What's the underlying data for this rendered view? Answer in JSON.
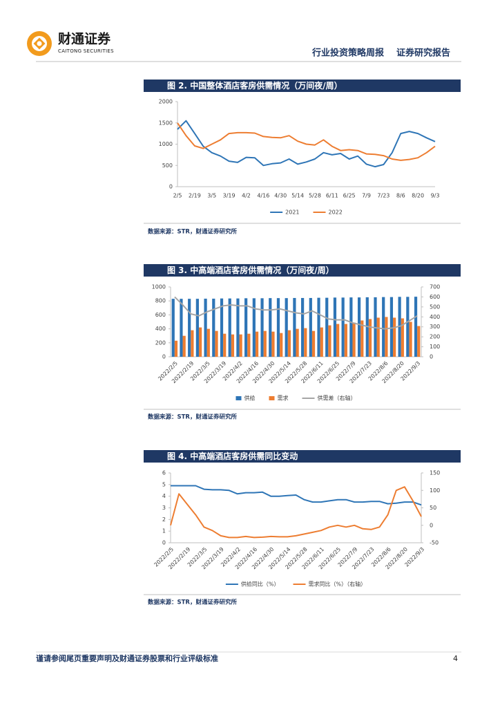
{
  "header": {
    "company": "财通证券",
    "company_en": "CAITONG SECURITIES",
    "report_type": "行业投资策略周报",
    "report_kind": "证券研究报告"
  },
  "chart_data": [
    {
      "type": "line",
      "title": "图 2. 中国整体酒店客房供需情况（万间夜/周）",
      "source": "数据来源：STR，财通证券研究所",
      "categories": [
        "2/5",
        null,
        "2/19",
        null,
        "3/5",
        null,
        "3/19",
        null,
        "4/2",
        null,
        "4/16",
        null,
        "4/30",
        null,
        "5/14",
        null,
        "5/28",
        null,
        "6/11",
        null,
        "6/25",
        null,
        "7/9",
        null,
        "7/23",
        null,
        "8/6",
        null,
        "8/20",
        null,
        "9/3"
      ],
      "series": [
        {
          "name": "2021",
          "color": "#2e75b6",
          "values": [
            1350,
            1550,
            1250,
            950,
            800,
            720,
            600,
            570,
            690,
            680,
            500,
            540,
            560,
            650,
            530,
            580,
            650,
            800,
            750,
            780,
            650,
            720,
            530,
            470,
            520,
            800,
            1250,
            1300,
            1250,
            1150,
            1060
          ]
        },
        {
          "name": "2022",
          "color": "#ed7d31",
          "values": [
            1500,
            1200,
            960,
            900,
            1000,
            1100,
            1250,
            1270,
            1270,
            1260,
            1180,
            1160,
            1150,
            1200,
            1070,
            1000,
            980,
            1100,
            950,
            850,
            870,
            850,
            770,
            760,
            730,
            650,
            620,
            640,
            680,
            800,
            950
          ]
        }
      ],
      "ylim": [
        0,
        2000
      ],
      "yticks": [
        0,
        500,
        1000,
        1500,
        2000
      ],
      "grid": false
    },
    {
      "type": "bar",
      "title": "图 3. 中高端酒店客房供需情况（万间夜/周）",
      "source": "数据来源：STR，财通证券研究所",
      "categories": [
        "2022/2/5",
        null,
        "2022/2/19",
        null,
        "2022/3/5",
        null,
        "2022/3/19",
        null,
        "2022/4/2",
        null,
        "2022/4/16",
        null,
        "2022/4/30",
        null,
        "2022/5/14",
        null,
        "2022/5/28",
        null,
        "2022/6/11",
        null,
        "2022/6/25",
        null,
        "2022/7/9",
        null,
        "2022/7/23",
        null,
        "2022/8/6",
        null,
        "2022/8/20",
        null,
        "2022/9/3"
      ],
      "series": [
        {
          "name": "供给",
          "color": "#2e75b6",
          "type": "bar",
          "values": [
            830,
            830,
            830,
            830,
            832,
            832,
            835,
            835,
            835,
            838,
            838,
            838,
            840,
            840,
            840,
            842,
            842,
            842,
            845,
            845,
            848,
            848,
            850,
            850,
            852,
            852,
            855,
            855,
            858,
            858,
            860
          ]
        },
        {
          "name": "需求",
          "color": "#ed7d31",
          "type": "bar",
          "values": [
            230,
            300,
            380,
            420,
            400,
            370,
            330,
            320,
            320,
            330,
            360,
            370,
            360,
            340,
            380,
            400,
            410,
            370,
            420,
            450,
            470,
            470,
            490,
            520,
            540,
            560,
            570,
            560,
            550,
            500,
            440
          ]
        },
        {
          "name": "供需差（右轴）",
          "color": "#a5a5a5",
          "type": "line",
          "axis": "y2",
          "values": [
            600,
            520,
            430,
            410,
            450,
            480,
            510,
            520,
            510,
            510,
            480,
            470,
            470,
            480,
            460,
            440,
            430,
            460,
            420,
            380,
            370,
            370,
            340,
            320,
            300,
            290,
            280,
            290,
            310,
            360,
            410
          ]
        }
      ],
      "ylim": [
        0,
        1000
      ],
      "yticks": [
        0,
        200,
        400,
        600,
        800,
        1000
      ],
      "y2lim": [
        0,
        700
      ],
      "y2ticks": [
        0,
        100,
        200,
        300,
        400,
        500,
        600,
        700
      ],
      "grid": false
    },
    {
      "type": "line",
      "title": "图 4. 中高端酒店客房供需同比变动",
      "source": "数据来源：STR，财通证券研究所",
      "categories": [
        "2022/2/5",
        null,
        "2022/2/19",
        null,
        "2022/3/5",
        null,
        "2022/3/19",
        null,
        "2022/4/2",
        null,
        "2022/4/16",
        null,
        "2022/4/30",
        null,
        "2022/5/14",
        null,
        "2022/5/28",
        null,
        "2022/6/11",
        null,
        "2022/6/25",
        null,
        "2022/7/9",
        null,
        "2022/7/23",
        null,
        "2022/8/6",
        null,
        "2022/8/20",
        null,
        "2022/9/3"
      ],
      "series": [
        {
          "name": "供给同比（%）",
          "color": "#2e75b6",
          "values": [
            4.9,
            4.9,
            4.9,
            4.9,
            4.6,
            4.55,
            4.55,
            4.5,
            4.2,
            4.3,
            4.3,
            4.35,
            4.0,
            4.0,
            4.05,
            4.1,
            3.7,
            3.5,
            3.5,
            3.6,
            3.7,
            3.7,
            3.5,
            3.5,
            3.55,
            3.55,
            3.35,
            3.4,
            3.5,
            3.5,
            3.25
          ]
        },
        {
          "name": "需求同比（%）（右轴）",
          "color": "#ed7d31",
          "axis": "y2",
          "values": [
            0,
            90,
            60,
            30,
            -5,
            -15,
            -30,
            -35,
            -35,
            -32,
            -35,
            -34,
            -32,
            -33,
            -33,
            -30,
            -25,
            -20,
            -15,
            -5,
            0,
            -5,
            0,
            -10,
            -12,
            -5,
            30,
            100,
            110,
            70,
            25
          ]
        }
      ],
      "ylim": [
        0,
        6
      ],
      "yticks": [
        0,
        1,
        2,
        3,
        4,
        5,
        6
      ],
      "y2lim": [
        -50,
        150
      ],
      "y2ticks": [
        -50,
        0,
        50,
        100,
        150
      ],
      "grid": false
    }
  ],
  "footer": {
    "disclaimer": "谨请参阅尾页重要声明及财通证券股票和行业评级标准",
    "page": "4"
  }
}
